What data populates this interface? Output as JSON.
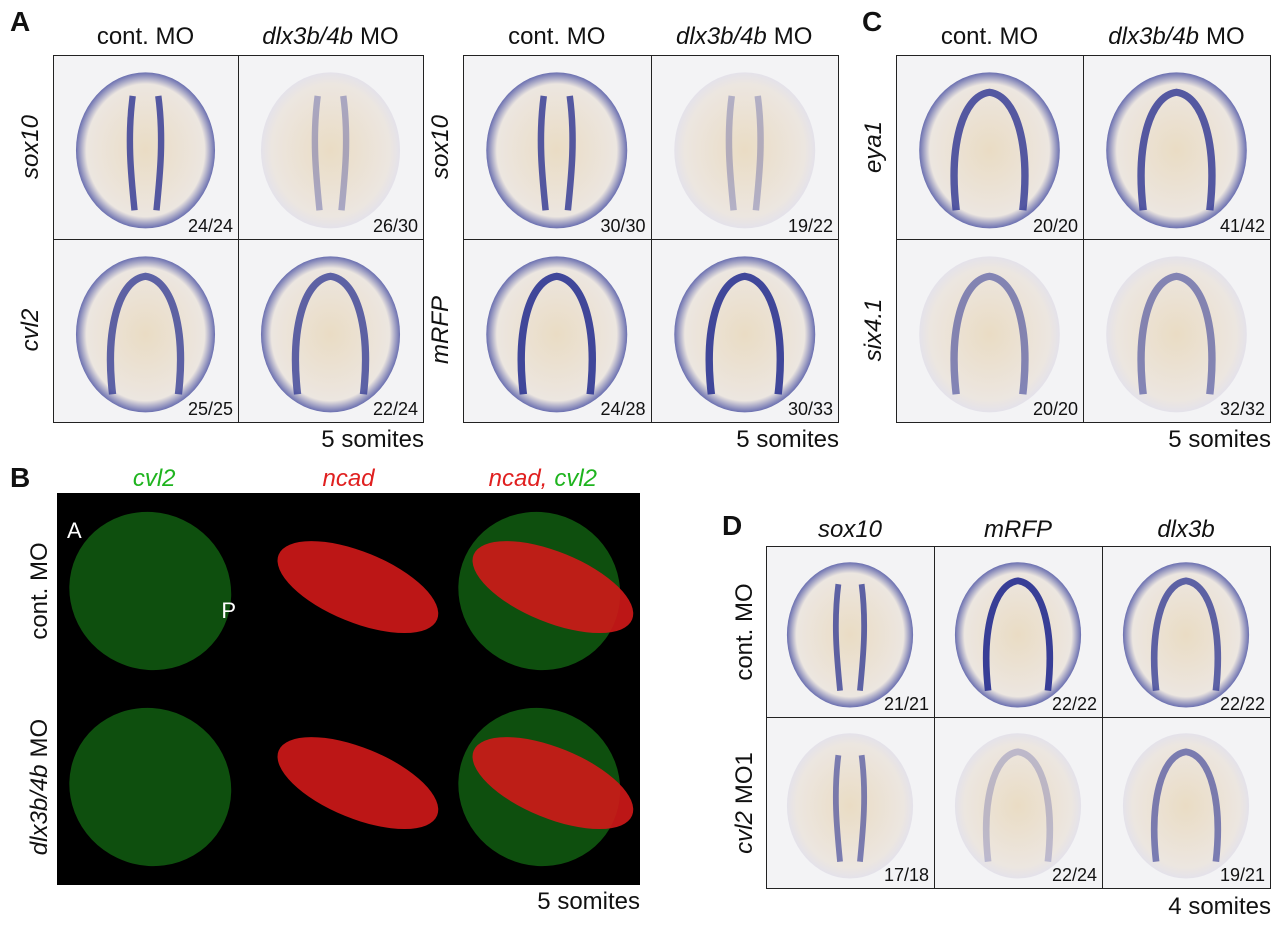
{
  "panel_a": {
    "label": "A",
    "groups": [
      {
        "columns": [
          [
            {
              "text": "cont. MO"
            }
          ],
          [
            {
              "text": "dlx3b/4b",
              "italic": true
            },
            {
              "text": "MO"
            }
          ]
        ],
        "rows": [
          [
            {
              "text": "sox10",
              "italic": true
            }
          ],
          [
            {
              "text": "cvl2",
              "italic": true
            }
          ]
        ],
        "counts": [
          [
            "24/24",
            "26/30"
          ],
          [
            "25/25",
            "22/24"
          ]
        ],
        "stage": "5 somites"
      },
      {
        "columns": [
          [
            {
              "text": "cont. MO"
            }
          ],
          [
            {
              "text": "dlx3b/4b",
              "italic": true
            },
            {
              "text": "MO"
            }
          ]
        ],
        "rows": [
          [
            {
              "text": "sox10",
              "italic": true
            }
          ],
          [
            {
              "text": "mRFP",
              "italic": true
            }
          ]
        ],
        "counts": [
          [
            "30/30",
            "19/22"
          ],
          [
            "24/28",
            "30/33"
          ]
        ],
        "stage": "5 somites"
      }
    ]
  },
  "panel_b": {
    "label": "B",
    "columns": [
      [
        {
          "text": "cvl2",
          "italic": true,
          "color": "#1fb41f"
        }
      ],
      [
        {
          "text": "ncad",
          "italic": true,
          "color": "#e02020"
        }
      ],
      [
        {
          "text": "ncad,",
          "italic": true,
          "color": "#e02020"
        },
        {
          "text": "cvl2",
          "italic": true,
          "color": "#1fb41f"
        }
      ]
    ],
    "rows": [
      [
        {
          "text": "cont. MO"
        }
      ],
      [
        {
          "text": "dlx3b/4b",
          "italic": true
        },
        {
          "text": "MO"
        }
      ]
    ],
    "annotations": [
      "A",
      "P"
    ],
    "stage": "5 somites"
  },
  "panel_c": {
    "label": "C",
    "columns": [
      [
        {
          "text": "cont. MO"
        }
      ],
      [
        {
          "text": "dlx3b/4b",
          "italic": true
        },
        {
          "text": "MO"
        }
      ]
    ],
    "rows": [
      [
        {
          "text": "eya1",
          "italic": true
        }
      ],
      [
        {
          "text": "six4.1",
          "italic": true
        }
      ]
    ],
    "counts": [
      [
        "20/20",
        "41/42"
      ],
      [
        "20/20",
        "32/32"
      ]
    ],
    "stage": "5 somites"
  },
  "panel_d": {
    "label": "D",
    "columns": [
      [
        {
          "text": "sox10",
          "italic": true
        }
      ],
      [
        {
          "text": "mRFP",
          "italic": true
        }
      ],
      [
        {
          "text": "dlx3b",
          "italic": true
        }
      ]
    ],
    "rows": [
      [
        {
          "text": "cont. MO"
        }
      ],
      [
        {
          "text": "cvl2",
          "italic": true
        },
        {
          "text": "MO1"
        }
      ]
    ],
    "counts": [
      [
        "21/21",
        "22/22",
        "22/22"
      ],
      [
        "17/18",
        "22/24",
        "19/21"
      ]
    ],
    "stage": "4 somites"
  }
}
